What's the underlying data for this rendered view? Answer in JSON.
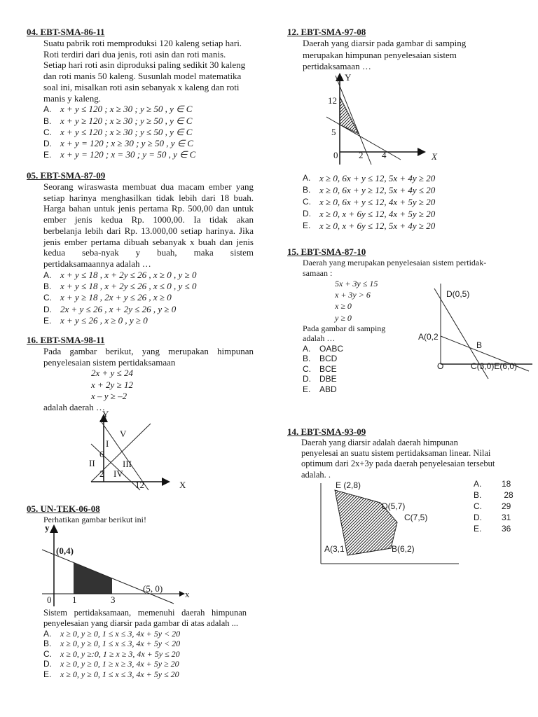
{
  "q04": {
    "title": "04. EBT-SMA-86-11",
    "lines": [
      "Suatu pabrik roti memproduksi 120 kaleng setiap hari.",
      "Roti terdiri dari dua jenis, roti asin dan roti manis.",
      "Setiap hari roti asin diproduksi paling sedikit 30 kaleng",
      "dan roti manis 50 kaleng. Susunlah model matematika",
      "soal ini, misalkan roti asin sebanyak x kaleng dan roti",
      "manis y kaleng."
    ],
    "choices": [
      {
        "letter": "A.",
        "text": "x + y ≤ 120 ; x ≥ 30 ; y ≥ 50 , y ∈ C"
      },
      {
        "letter": "B.",
        "text": "x + y ≥ 120 ; x ≥ 30 ; y ≥ 50 , y ∈ C"
      },
      {
        "letter": "C.",
        "text": "x + y ≤ 120 ; x ≥ 30 ; y ≤ 50 , y ∈ C"
      },
      {
        "letter": "D.",
        "text": "x + y = 120 ; x ≥ 30 ; y ≥ 50 , y ∈ C"
      },
      {
        "letter": "E.",
        "text": "x + y = 120 ; x = 30 ; y = 50 , y ∈ C"
      }
    ]
  },
  "q05a": {
    "title": "05. EBT-SMA-87-09",
    "lines": [
      "Seorang wiraswasta membuat dua macam ember yang",
      "setiap harinya menghasilkan tidak lebih dari 18 buah.",
      "Harga bahan untuk jenis pertama Rp. 500,00 dan untuk",
      "ember jenis kedua Rp. 1000,00. Ia tidak akan",
      "berbelanja lebih dari Rp. 13.000,00 setiap harinya. Jika",
      "jenis ember pertama dibuah sebanyak x buah dan jenis",
      "kedua seba-nyak y buah, maka sistem",
      "pertidaksamaannya adalah …"
    ],
    "choices": [
      {
        "letter": "A.",
        "text": "x + y ≤ 18 , x + 2y ≤ 26 , x ≥ 0 , y ≥ 0"
      },
      {
        "letter": "B.",
        "text": "x + y ≤ 18 , x + 2y ≤ 26 , x ≤ 0 , y ≤ 0"
      },
      {
        "letter": "C.",
        "text": "x + y ≥ 18 , 2x + y ≤ 26 , x ≥ 0"
      },
      {
        "letter": "D.",
        "text": "2x + y ≤ 26 , x + 2y ≤ 26 , y ≥ 0"
      },
      {
        "letter": "E.",
        "text": "x + y ≤ 26 , x ≥ 0 , y ≥ 0"
      }
    ]
  },
  "q16": {
    "title": "16. EBT-SMA-98-11",
    "lines": [
      "Pada gambar berikut, yang merupakan himpunan",
      "penyelesaian sistem pertidaksamaan"
    ],
    "equations": [
      "2x + y ≤ 24",
      "x + 2y ≥ 12",
      "x – y ≥ –2"
    ],
    "after": "adalah daerah …",
    "graph": {
      "y_label": "Y",
      "x_label": "X",
      "regions": [
        "V",
        "I",
        "II",
        "III",
        "IV"
      ],
      "tick_y": "6",
      "tick_2": "2",
      "tick_12": "12"
    }
  },
  "q05b": {
    "title": "05. UN-TEK-06-08",
    "intro": "Perhatikan gambar berikut ini!",
    "graph": {
      "y_label": "y",
      "x_label": "x",
      "point_a": "(0,4)",
      "point_b": "(5, 0)",
      "origin": "0",
      "tick_1": "1",
      "tick_3": "3"
    },
    "lines": [
      "Sistem pertidaksamaan, memenuhi daerah himpunan",
      "penyelesaian yang diarsir pada gambar di atas adalah ..."
    ],
    "choices": [
      {
        "letter": "A.",
        "text": "x ≥ 0, y ≥ 0, 1 ≤ x ≤ 3, 4x + 5y < 20"
      },
      {
        "letter": "B.",
        "text": "x ≥ 0, y ≥ 0, 1 ≤ x ≤ 3, 4x + 5y < 20"
      },
      {
        "letter": "C.",
        "text": "x ≥ 0, y ≥:0, 1 ≥ x ≥ 3, 4x + 5y ≤ 20"
      },
      {
        "letter": "D.",
        "text": "x ≥ 0, y ≥ 0, 1 ≥ x ≥ 3, 4x + 5y ≥ 20"
      },
      {
        "letter": "E.",
        "text": "x ≥ 0, y ≥ 0, 1 ≤ x ≤ 3, 4x + 5y ≤ 20"
      }
    ]
  },
  "q12": {
    "title": "12. EBT-SMA-97-08",
    "lines": [
      "Daerah yang diarsir pada gambar di samping",
      "merupakan himpunan penyelesaian sistem",
      "pertidaksamaan …"
    ],
    "graph": {
      "y_label": "Y",
      "x_label": "X",
      "tick_12": "12",
      "tick_5": "5",
      "origin": "0",
      "tick_2": "2",
      "tick_4": "4"
    },
    "choices": [
      {
        "letter": "A.",
        "text": "x ≥ 0, 6x + y ≤ 12, 5x + 4y ≥ 20"
      },
      {
        "letter": "B.",
        "text": "x ≥ 0, 6x + y ≥ 12, 5x + 4y ≤ 20"
      },
      {
        "letter": "C.",
        "text": "x ≥ 0, 6x + y ≤ 12, 4x + 5y ≥ 20"
      },
      {
        "letter": "D.",
        "text": "x ≥ 0, x + 6y ≤ 12, 4x + 5y ≥ 20"
      },
      {
        "letter": "E.",
        "text": "x ≥ 0, x + 6y ≤ 12, 5x + 4y ≥ 20"
      }
    ]
  },
  "q15": {
    "title": "15. EBT-SMA-87-10",
    "lines": [
      "Daerah yang merupakan penyelesaian sistem pertidak-",
      "samaan :"
    ],
    "equations": [
      "5x + 3y ≤ 15",
      "x + 3y > 6",
      "x ≥ 0",
      "y ≥ 0"
    ],
    "after": [
      "Pada gambar di samping",
      "adalah …"
    ],
    "graph": {
      "d": "D(0,5)",
      "a": "A(0,2",
      "b": "B",
      "o": "O",
      "ce": "C(3,0)E(6,0)"
    },
    "choices": [
      {
        "letter": "A.",
        "text": "OABC"
      },
      {
        "letter": "B.",
        "text": "BCD"
      },
      {
        "letter": "C.",
        "text": "BCE"
      },
      {
        "letter": "D.",
        "text": "DBE"
      },
      {
        "letter": "E.",
        "text": "ABD"
      }
    ]
  },
  "q14": {
    "title": "14. EBT-SMA-93-09",
    "lines": [
      "Daerah yang diarsir adalah daerah himpunan",
      "penyelesai an suatu sistem pertidaksaman linear. Nilai",
      "optimum dari 2x+3y pada daerah penyelesaian tersebut",
      "adalah. ."
    ],
    "graph": {
      "e": "E (2,8)",
      "d": "D(5,7)",
      "c": "C(7,5)",
      "a": "A(3,1",
      "b": "B(6,2)"
    },
    "choices": [
      {
        "letter": "A.",
        "text": "18"
      },
      {
        "letter": "B.",
        "text": " 28"
      },
      {
        "letter": "C.",
        "text": "29"
      },
      {
        "letter": "D.",
        "text": "31"
      },
      {
        "letter": "E.",
        "text": "36"
      }
    ]
  }
}
